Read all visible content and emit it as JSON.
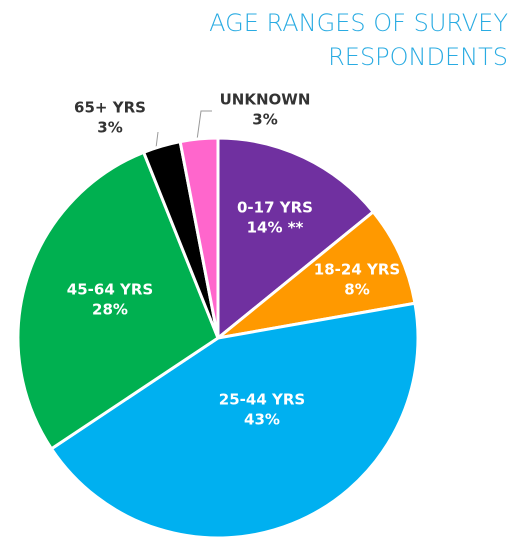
{
  "chart_data": {
    "type": "pie",
    "title": "AGE RANGES OF SURVEY RESPONDENTS",
    "categories": [
      "0-17 YRS",
      "18-24 YRS",
      "25-44 YRS",
      "45-64 YRS",
      "65+ YRS",
      "UNKNOWN"
    ],
    "values": [
      14,
      8,
      43,
      28,
      3,
      3
    ],
    "value_labels": [
      "14% **",
      "8%",
      "43%",
      "28%",
      "3%",
      "3%"
    ],
    "colors": [
      "#7030a0",
      "#ff9900",
      "#00b0f0",
      "#00b050",
      "#000000",
      "#ff66cc"
    ]
  }
}
